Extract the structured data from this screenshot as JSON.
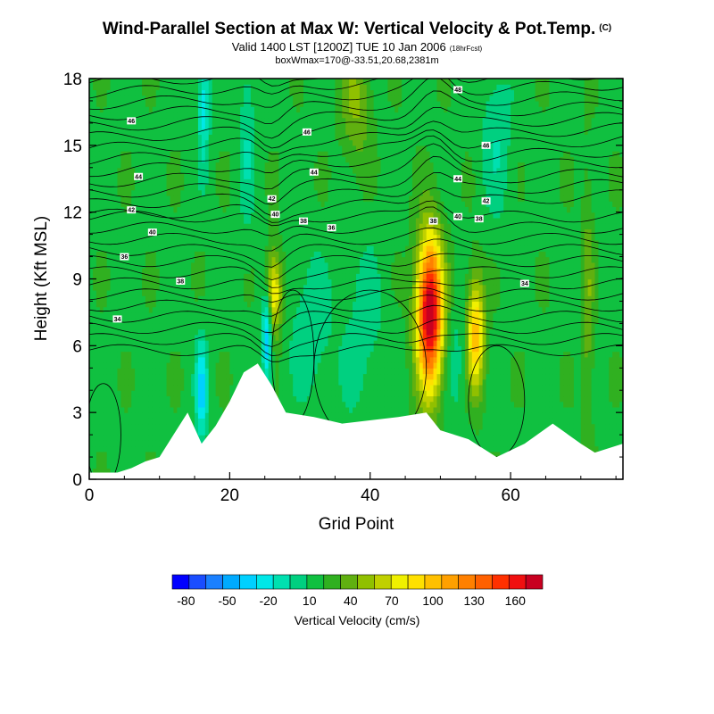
{
  "chart_data": {
    "type": "heatmap",
    "title": "Wind-Parallel Section at Max W: Vertical Velocity & Pot.Temp.",
    "title_badge": "(C)",
    "subtitle": "Valid 1400 LST [1200Z] TUE 10 Jan 2006",
    "subtitle_badge": "(18hrFcst)",
    "subtitle2": "boxWmax=170@-33.51,20.68,2381m",
    "xlabel": "Grid Point",
    "ylabel": "Height (Kft MSL)",
    "xlim": [
      0,
      76
    ],
    "ylim": [
      0,
      18
    ],
    "x_ticks": [
      0,
      20,
      40,
      60
    ],
    "y_ticks": [
      0,
      3,
      6,
      9,
      12,
      15,
      18
    ],
    "colorbar": {
      "label": "Vertical Velocity (cm/s)",
      "tick_labels": [
        "-80",
        "-50",
        "-20",
        "10",
        "40",
        "70",
        "100",
        "130",
        "160"
      ],
      "tick_values": [
        -80,
        -50,
        -20,
        10,
        40,
        70,
        100,
        130,
        160
      ],
      "colors": [
        "#0000ff",
        "#1a4dff",
        "#1a80ff",
        "#00aaff",
        "#00d0ff",
        "#00e8e8",
        "#00e0b0",
        "#00d080",
        "#10c040",
        "#30b020",
        "#60b010",
        "#90c000",
        "#c0d000",
        "#f0f000",
        "#ffe000",
        "#ffc000",
        "#ffa000",
        "#ff8000",
        "#ff6000",
        "#ff3000",
        "#f01010",
        "#c80020"
      ]
    },
    "terrain": [
      [
        0,
        0.3
      ],
      [
        4,
        0.3
      ],
      [
        6,
        0.5
      ],
      [
        8,
        0.8
      ],
      [
        10,
        1.0
      ],
      [
        12,
        2.0
      ],
      [
        14,
        3.0
      ],
      [
        16,
        1.6
      ],
      [
        18,
        2.4
      ],
      [
        20,
        3.5
      ],
      [
        22,
        4.8
      ],
      [
        24,
        5.2
      ],
      [
        26,
        4.2
      ],
      [
        28,
        3.0
      ],
      [
        32,
        2.8
      ],
      [
        36,
        2.5
      ],
      [
        44,
        2.8
      ],
      [
        48,
        3.0
      ],
      [
        50,
        2.2
      ],
      [
        54,
        1.8
      ],
      [
        58,
        1.0
      ],
      [
        62,
        1.6
      ],
      [
        66,
        2.5
      ],
      [
        70,
        1.6
      ],
      [
        72,
        1.2
      ],
      [
        76,
        1.6
      ]
    ],
    "velocity_features": [
      {
        "x": 48.5,
        "z": 7.5,
        "sx": 1.3,
        "sz": 2.4,
        "w": 170
      },
      {
        "x": 55.0,
        "z": 6.5,
        "sx": 0.9,
        "sz": 1.8,
        "w": 85
      },
      {
        "x": 26.3,
        "z": 8.4,
        "sx": 0.8,
        "sz": 1.3,
        "w": 70
      },
      {
        "x": 25.3,
        "z": 6.5,
        "sx": 0.5,
        "sz": 1.6,
        "w": -60
      },
      {
        "x": 16.0,
        "z": 4.0,
        "sx": 0.6,
        "sz": 1.6,
        "w": -50
      },
      {
        "x": 16.3,
        "z": 17.0,
        "sx": 0.6,
        "sz": 2.0,
        "w": -40
      },
      {
        "x": 22.5,
        "z": 15.5,
        "sx": 0.8,
        "sz": 3.0,
        "w": -20
      },
      {
        "x": 39.0,
        "z": 6.5,
        "sx": 2.2,
        "sz": 3.0,
        "w": -15
      },
      {
        "x": 31.5,
        "z": 6.8,
        "sx": 2.0,
        "sz": 2.2,
        "w": -20
      },
      {
        "x": 58.0,
        "z": 15.5,
        "sx": 1.5,
        "sz": 2.5,
        "w": -20
      },
      {
        "x": 52.5,
        "z": 5.5,
        "sx": 1.2,
        "sz": 2.0,
        "w": -15
      },
      {
        "x": 71.0,
        "z": 8.0,
        "sx": 0.6,
        "sz": 4.0,
        "w": 25
      },
      {
        "x": 38.0,
        "z": 17.0,
        "sx": 1.5,
        "sz": 2.0,
        "w": 30
      }
    ],
    "theta_labels": [
      {
        "x": 52.5,
        "z": 17.5,
        "text": "48"
      },
      {
        "x": 6.0,
        "z": 16.1,
        "text": "46"
      },
      {
        "x": 31.0,
        "z": 15.6,
        "text": "46"
      },
      {
        "x": 56.5,
        "z": 15.0,
        "text": "46"
      },
      {
        "x": 7.0,
        "z": 13.6,
        "text": "44"
      },
      {
        "x": 32.0,
        "z": 13.8,
        "text": "44"
      },
      {
        "x": 52.5,
        "z": 13.5,
        "text": "44"
      },
      {
        "x": 26.0,
        "z": 12.6,
        "text": "42"
      },
      {
        "x": 56.5,
        "z": 12.5,
        "text": "42"
      },
      {
        "x": 6.0,
        "z": 12.1,
        "text": "42"
      },
      {
        "x": 26.5,
        "z": 11.9,
        "text": "40"
      },
      {
        "x": 52.5,
        "z": 11.8,
        "text": "40"
      },
      {
        "x": 9.0,
        "z": 11.1,
        "text": "40"
      },
      {
        "x": 30.5,
        "z": 11.6,
        "text": "38"
      },
      {
        "x": 49.0,
        "z": 11.6,
        "text": "38"
      },
      {
        "x": 55.5,
        "z": 11.7,
        "text": "38"
      },
      {
        "x": 34.5,
        "z": 11.3,
        "text": "36"
      },
      {
        "x": 5.0,
        "z": 10.0,
        "text": "36"
      },
      {
        "x": 13.0,
        "z": 8.9,
        "text": "38"
      },
      {
        "x": 62.0,
        "z": 8.8,
        "text": "34"
      },
      {
        "x": 4.0,
        "z": 7.2,
        "text": "34"
      }
    ]
  }
}
